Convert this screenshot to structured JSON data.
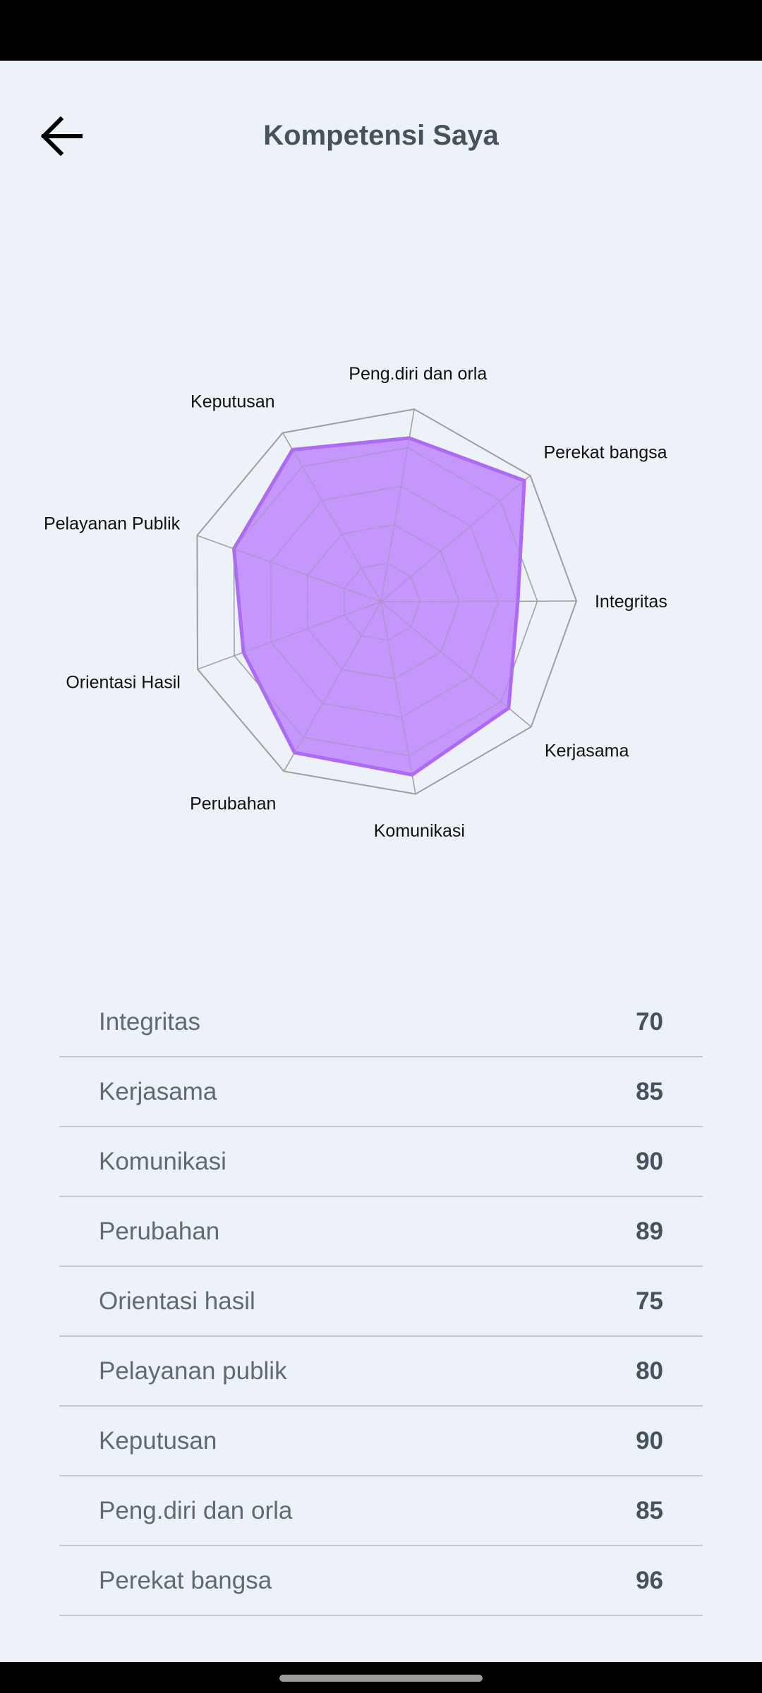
{
  "app_bar": {
    "title": "Kompetensi Saya",
    "back_icon": "arrow-left-icon"
  },
  "chart_data": {
    "type": "radar",
    "categories": [
      "Integritas",
      "Kerjasama",
      "Komunikasi",
      "Perubahan",
      "Orientasi Hasil",
      "Pelayanan Publik",
      "Keputusan",
      "Peng.diri dan orla",
      "Perekat bangsa"
    ],
    "values": [
      70,
      85,
      90,
      89,
      75,
      80,
      90,
      85,
      96
    ],
    "rmax": 100,
    "grid_levels": 5,
    "fill_color": "#c08cfb",
    "stroke_color": "#ad6af2",
    "grid_color": "#a0a0a0"
  },
  "scores": [
    {
      "name": "Integritas",
      "value": "70"
    },
    {
      "name": "Kerjasama",
      "value": "85"
    },
    {
      "name": "Komunikasi",
      "value": "90"
    },
    {
      "name": "Perubahan",
      "value": "89"
    },
    {
      "name": "Orientasi hasil",
      "value": "75"
    },
    {
      "name": "Pelayanan publik",
      "value": "80"
    },
    {
      "name": "Keputusan",
      "value": "90"
    },
    {
      "name": "Peng.diri dan orla",
      "value": "85"
    },
    {
      "name": "Perekat bangsa",
      "value": "96"
    }
  ]
}
